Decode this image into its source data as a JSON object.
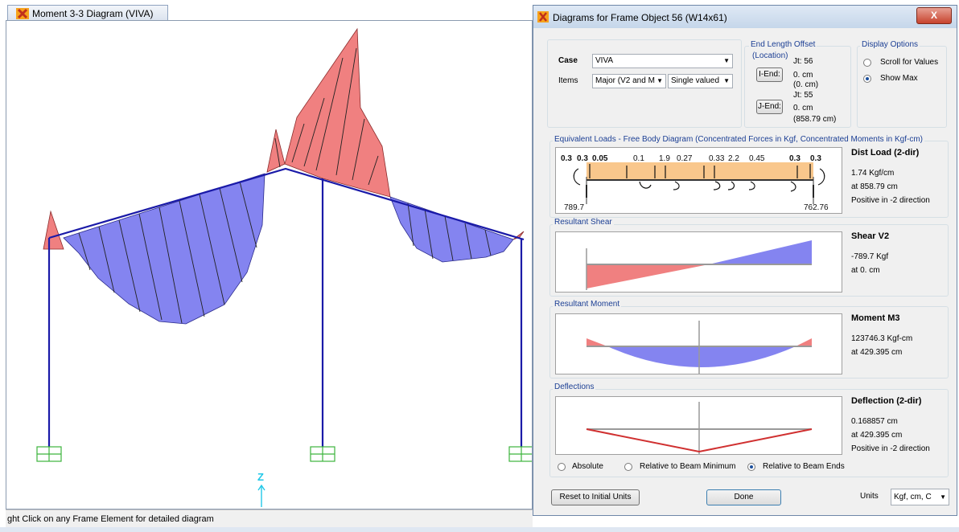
{
  "left_window": {
    "tab_title": "Moment 3-3 Diagram (VIVA)",
    "status_text": "ght Click on any Frame Element for detailed diagram",
    "axis_label": "Z"
  },
  "dialog": {
    "title": "Diagrams for Frame Object 56  (W14x61)",
    "close_label": "X",
    "case_label": "Case",
    "case_value": "VIVA",
    "items_label": "Items",
    "items_value": "Major (V2 and M",
    "items_mode_value": "Single valued",
    "end_offset": {
      "title_line1": "End Length Offset",
      "title_line2": "(Location)",
      "i_end_button": "I-End:",
      "j_end_button": "J-End:",
      "i_jt": "Jt:  56",
      "i_val1": "0. cm",
      "i_val2": "(0. cm)",
      "j_jt": "Jt:  55",
      "j_val1": "0. cm",
      "j_val2": "(858.79 cm)"
    },
    "display_options": {
      "title": "Display Options",
      "scroll_label": "Scroll for Values",
      "show_max_label": "Show Max"
    },
    "equivalent_loads": {
      "title": "Equivalent Loads - Free Body Diagram  (Concentrated Forces in Kgf, Concentrated Moments in Kgf-cm)",
      "top_labels": [
        "0.3",
        "0.3",
        "0.05",
        "0.1",
        "1.9",
        "0.27",
        "0.33",
        "2.2",
        "0.45",
        "0.3",
        "0.3"
      ],
      "left_value": "789.7",
      "right_value": "762.76",
      "info_title": "Dist Load (2-dir)",
      "info_line1": "1.74 Kgf/cm",
      "info_line2": "at 858.79 cm",
      "info_line3": "Positive in -2 direction"
    },
    "shear": {
      "title": "Resultant Shear",
      "info_title": "Shear V2",
      "info_line1": "-789.7 Kgf",
      "info_line2": "at 0. cm"
    },
    "moment": {
      "title": "Resultant Moment",
      "info_title": "Moment M3",
      "info_line1": "123746.3 Kgf-cm",
      "info_line2": "at 429.395 cm"
    },
    "deflections": {
      "title": "Deflections",
      "info_title": "Deflection (2-dir)",
      "info_line1": "0.168857 cm",
      "info_line2": "at 429.395 cm",
      "info_line3": "Positive in -2 direction",
      "opt_absolute": "Absolute",
      "opt_rel_min": "Relative to Beam Minimum",
      "opt_rel_ends": "Relative to Beam Ends"
    },
    "reset_button": "Reset to Initial Units",
    "done_button": "Done",
    "units_label": "Units",
    "units_value": "Kgf, cm, C"
  },
  "colors": {
    "positive_fill": "#f08080",
    "negative_fill": "#8484f0",
    "frame_line": "#1a1aa8",
    "support": "#3cb43c",
    "axis": "#22c8e8",
    "load_fill": "#f9c78c",
    "deflection": "#d03030"
  }
}
